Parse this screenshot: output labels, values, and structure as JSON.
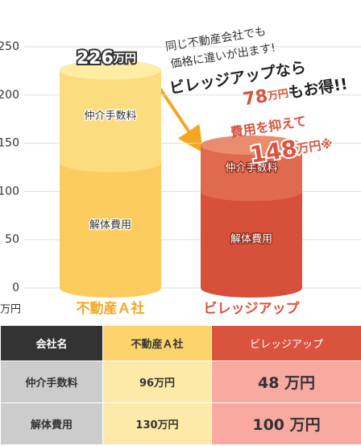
{
  "chart_data": {
    "type": "cylinder",
    "annotations": {
      "line1": "同じ不動産会社でも",
      "line2": "価格に違いが出ます!",
      "line3": "ビレッジアップなら",
      "save_number": "78",
      "save_unit": "万円",
      "save_rest": "もお得!!",
      "reduce": "費用を抑えて"
    },
    "total_labels": [
      {
        "number": "226",
        "unit": "万円"
      },
      {
        "number": "148",
        "unit": "万円※"
      }
    ],
    "categories": [
      "不動産Ａ社",
      "ビレッジアップ"
    ],
    "category_colors": [
      "#f5a623",
      "#d9533d"
    ],
    "series": [
      {
        "name": "解体費用",
        "colors": [
          "#fbcb5e",
          "#d6503a"
        ],
        "values": [
          130,
          100
        ]
      },
      {
        "name": "仲介手数料",
        "colors": [
          "#fddc80",
          "#e06a4e"
        ],
        "values": [
          96,
          48
        ]
      }
    ],
    "top_colors": [
      "#ffeda4",
      "#ea8c6e"
    ],
    "y_unit": "万円",
    "ylim": [
      0,
      250
    ],
    "yticks": [
      0,
      50,
      100,
      150,
      200,
      250
    ]
  },
  "table": {
    "header": [
      "会社名",
      "不動産Ａ社",
      "ビレッジアップ"
    ],
    "rows": [
      [
        "仲介手数料",
        "96万円",
        "48 万円"
      ],
      [
        "解体費用",
        "130万円",
        "100 万円"
      ]
    ]
  }
}
